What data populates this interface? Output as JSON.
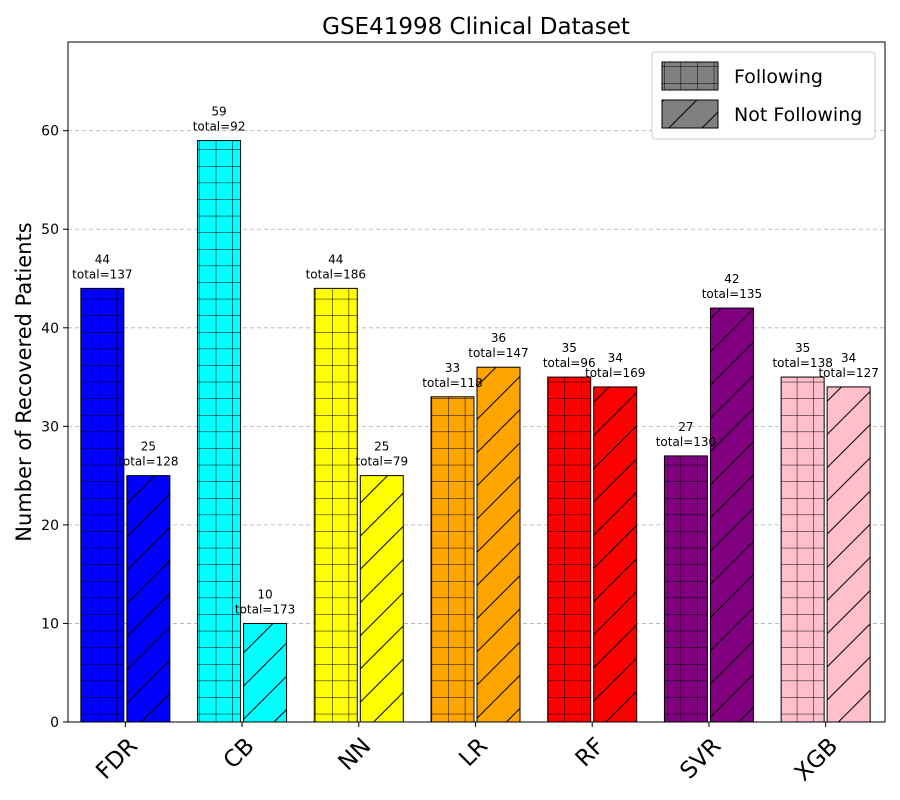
{
  "chart_data": {
    "type": "bar",
    "title": "GSE41998 Clinical Dataset",
    "ylabel": "Number of Recovered Patients",
    "xlabel": "",
    "categories": [
      "FDR",
      "CB",
      "NN",
      "LR",
      "RF",
      "SVR",
      "XGB"
    ],
    "colors": [
      "#0000ff",
      "#00ffff",
      "#ffff00",
      "#ffa500",
      "#ff0000",
      "#800080",
      "#ffc0cb"
    ],
    "ylim": [
      0,
      69
    ],
    "yticks": [
      "0",
      "10",
      "20",
      "30",
      "40",
      "50",
      "60"
    ],
    "grid": "horizontal dashed",
    "legend_position": "top-right",
    "series": [
      {
        "name": "Following",
        "hatch": "grid",
        "values": [
          44,
          59,
          44,
          33,
          35,
          27,
          35
        ],
        "totals": [
          "total=137",
          "total=92",
          "total=186",
          "total=118",
          "total=96",
          "total=130",
          "total=138"
        ]
      },
      {
        "name": "Not Following",
        "hatch": "diagonal",
        "values": [
          25,
          10,
          25,
          36,
          34,
          42,
          34
        ],
        "totals": [
          "total=128",
          "total=173",
          "total=79",
          "total=147",
          "total=169",
          "total=135",
          "total=127"
        ]
      }
    ]
  }
}
